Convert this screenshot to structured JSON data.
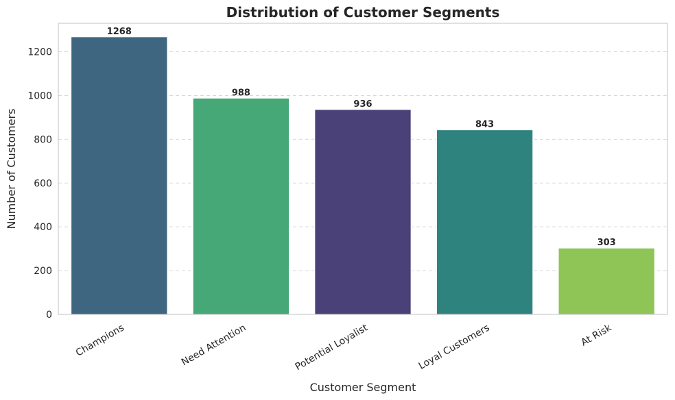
{
  "chart_data": {
    "type": "bar",
    "title": "Distribution of Customer Segments",
    "xlabel": "Customer Segment",
    "ylabel": "Number of Customers",
    "categories": [
      "Champions",
      "Need Attention",
      "Potential Loyalist",
      "Loyal Customers",
      "At Risk"
    ],
    "values": [
      1268,
      988,
      936,
      843,
      303
    ],
    "data_labels": [
      "1268",
      "988",
      "936",
      "843",
      "303"
    ],
    "colors": [
      "#3e6680",
      "#46a877",
      "#4a4178",
      "#2e837f",
      "#8fc457"
    ],
    "ylim": [
      0,
      1330
    ],
    "yticks": [
      0,
      200,
      400,
      600,
      800,
      1000,
      1200
    ],
    "grid": "horizontal-dashed",
    "legend": "none"
  }
}
